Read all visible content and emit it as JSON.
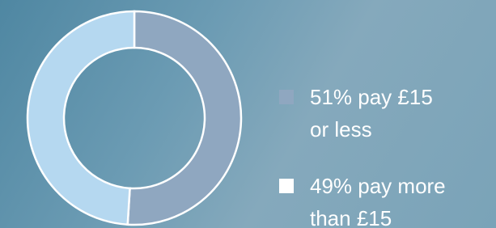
{
  "chart_data": {
    "type": "pie",
    "donut": true,
    "categories": [
      "51% pay £15 or less",
      "49% pay more than £15"
    ],
    "values": [
      51,
      49
    ],
    "colors": [
      "#8fa7c0",
      "#b5d8f0"
    ],
    "legend_marker_colors": [
      "#8fa7c0",
      "#ffffff"
    ],
    "legend": "right"
  }
}
